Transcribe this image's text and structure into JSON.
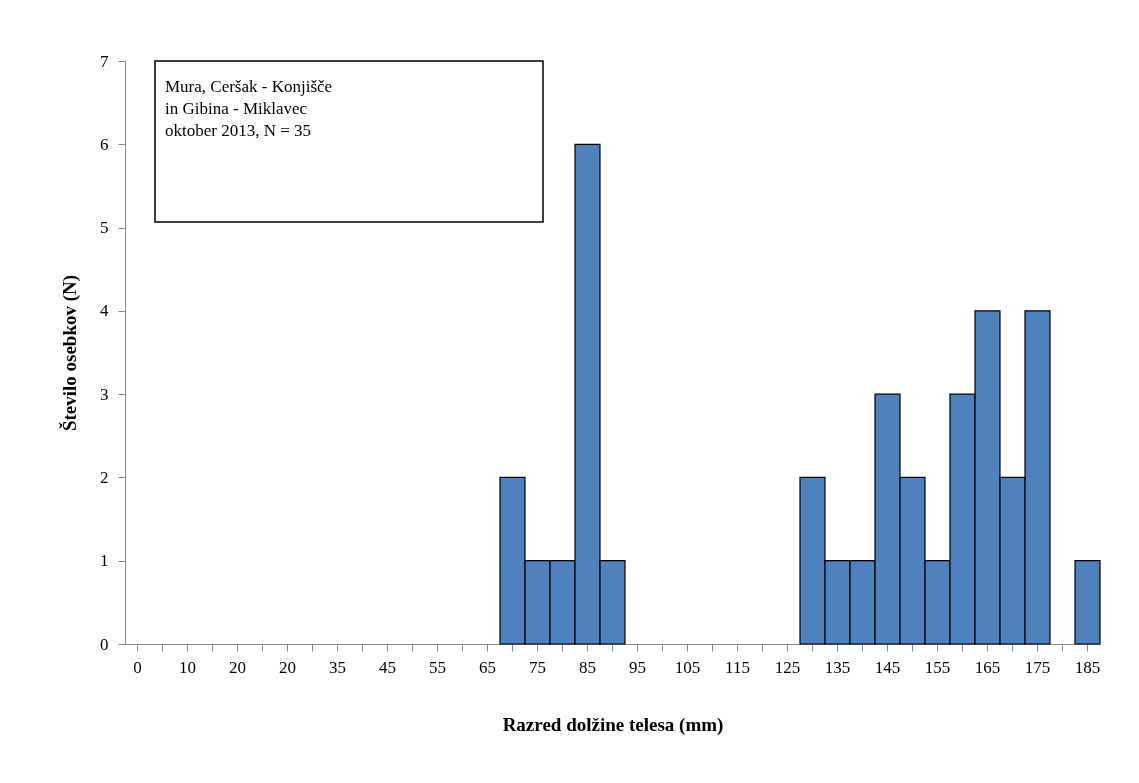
{
  "chart_data": {
    "type": "bar",
    "xlabel": "Razred dolžine telesa (mm)",
    "ylabel": "Število osebkov (N)",
    "categories": [
      "0",
      null,
      "10",
      null,
      "20",
      null,
      "20",
      null,
      "35",
      null,
      "45",
      null,
      "55",
      null,
      "65",
      null,
      "75",
      null,
      "85",
      null,
      "95",
      null,
      "105",
      null,
      "115",
      null,
      "125",
      null,
      "135",
      null,
      "145",
      null,
      "155",
      null,
      "165",
      null,
      "175",
      null,
      "185"
    ],
    "values": [
      0,
      0,
      0,
      0,
      0,
      0,
      0,
      0,
      0,
      0,
      0,
      0,
      0,
      0,
      0,
      2,
      1,
      1,
      6,
      1,
      0,
      0,
      0,
      0,
      0,
      0,
      0,
      2,
      1,
      1,
      3,
      2,
      1,
      3,
      4,
      2,
      4,
      0,
      1
    ],
    "color": "#4f81bd",
    "ylim": [
      0,
      7
    ],
    "yticks": [
      0,
      1,
      2,
      3,
      4,
      5,
      6,
      7
    ],
    "grid": false,
    "annotations": [
      "Mura, Ceršak - Konjišče\nin Gibina - Miklavec\noktober 2013, N = 35"
    ]
  }
}
